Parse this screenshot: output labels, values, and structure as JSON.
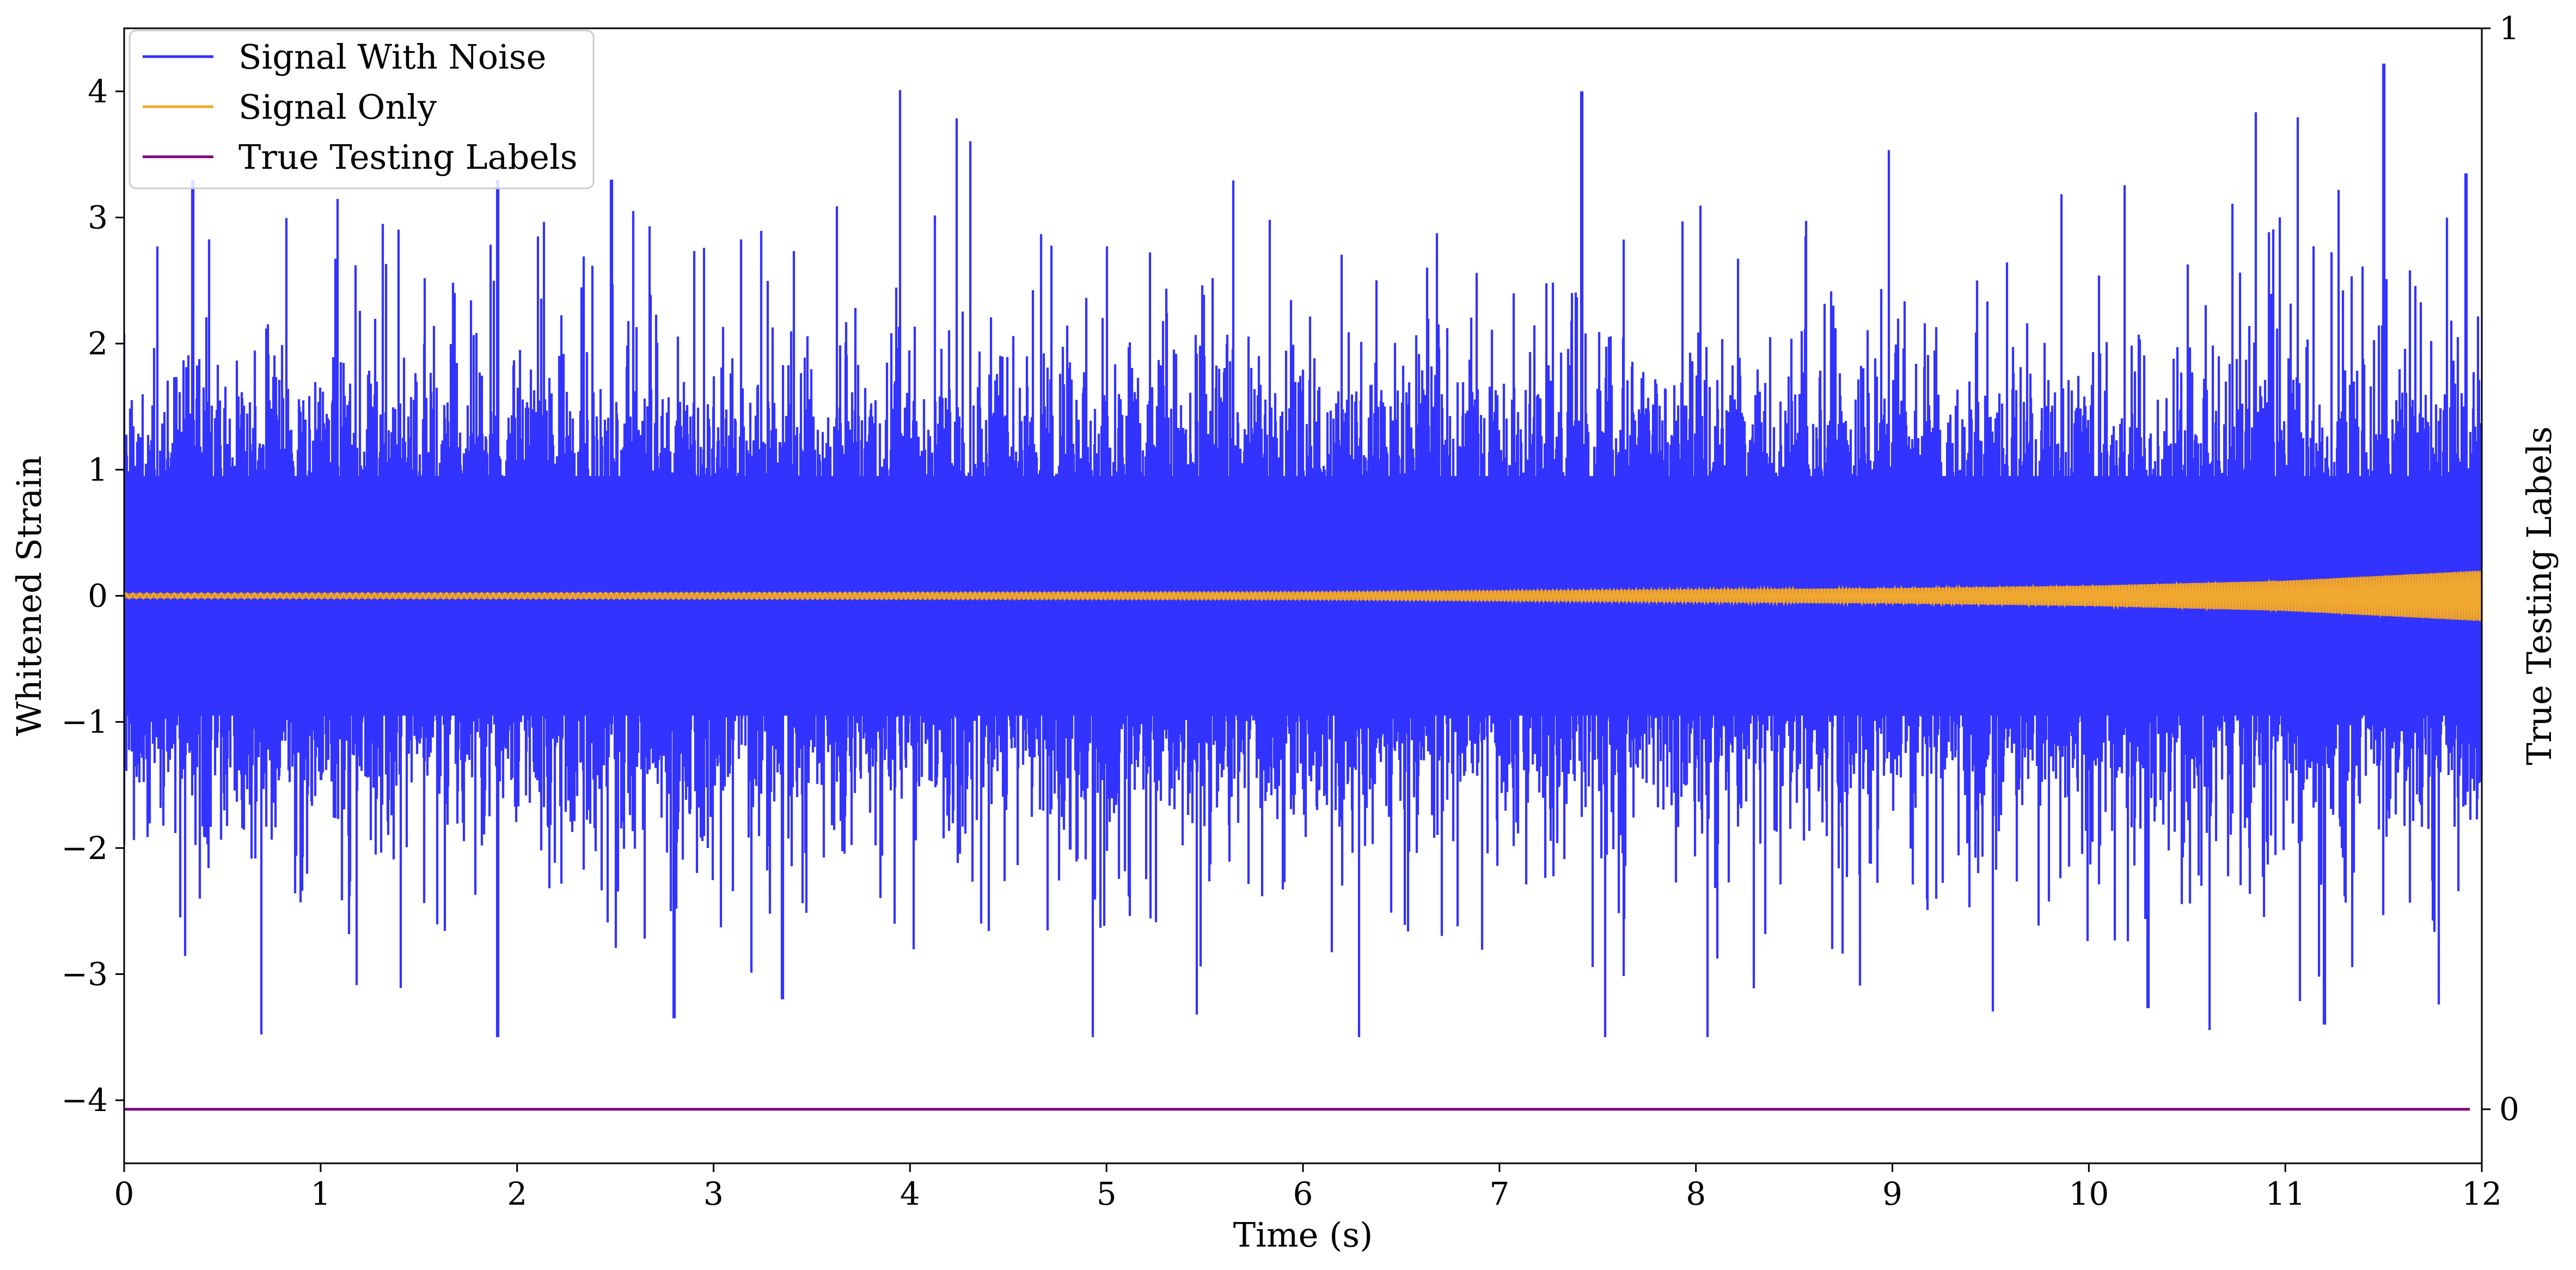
{
  "chart_data": {
    "type": "line",
    "title": "",
    "xlabel": "Time (s)",
    "ylabel": "Whitened Strain",
    "y2label": "True Testing Labels",
    "xlim": [
      0,
      12
    ],
    "ylim": [
      -4.5,
      4.5
    ],
    "y2lim": [
      -0.05,
      1.0
    ],
    "x_ticks": [
      "0",
      "1",
      "2",
      "3",
      "4",
      "5",
      "6",
      "7",
      "8",
      "9",
      "10",
      "11",
      "12"
    ],
    "y_ticks": [
      "−4",
      "−3",
      "−2",
      "−1",
      "0",
      "1",
      "2",
      "3",
      "4"
    ],
    "y2_ticks": [
      "0",
      "1"
    ],
    "legend_position": "top-left",
    "grid": false,
    "series": [
      {
        "name": "Signal With Noise",
        "color": "#3333ff",
        "axis": "left",
        "description_values": {
          "typical_range": [
            -1.3,
            1.3
          ],
          "max_peak": 4.22,
          "min_peak": -3.5,
          "notable_peaks": [
            {
              "x": 0.35,
              "y": 3.3
            },
            {
              "x": 1.9,
              "y": 3.3
            },
            {
              "x": 1.9,
              "y": -3.5
            },
            {
              "x": 2.48,
              "y": 3.3
            },
            {
              "x": 2.8,
              "y": -3.35
            },
            {
              "x": 3.35,
              "y": -3.2
            },
            {
              "x": 7.42,
              "y": 4.0
            },
            {
              "x": 10.3,
              "y": -3.27
            },
            {
              "x": 11.2,
              "y": -3.4
            },
            {
              "x": 11.5,
              "y": 4.22
            },
            {
              "x": 11.92,
              "y": 3.35
            }
          ]
        }
      },
      {
        "name": "Signal Only",
        "color": "#f0a830",
        "axis": "left",
        "amplitude_envelope": [
          {
            "x": 0,
            "y": 0.02
          },
          {
            "x": 6,
            "y": 0.03
          },
          {
            "x": 9,
            "y": 0.06
          },
          {
            "x": 10,
            "y": 0.08
          },
          {
            "x": 11,
            "y": 0.12
          },
          {
            "x": 12,
            "y": 0.2
          }
        ]
      },
      {
        "name": "True Testing Labels",
        "color": "#800080",
        "axis": "right",
        "x": [
          0,
          12
        ],
        "y": [
          0,
          0
        ]
      }
    ]
  },
  "colors": {
    "noise": "#3333ff",
    "signal": "#f0a830",
    "signal_fill": "#d48a30",
    "labels": "#800080"
  }
}
